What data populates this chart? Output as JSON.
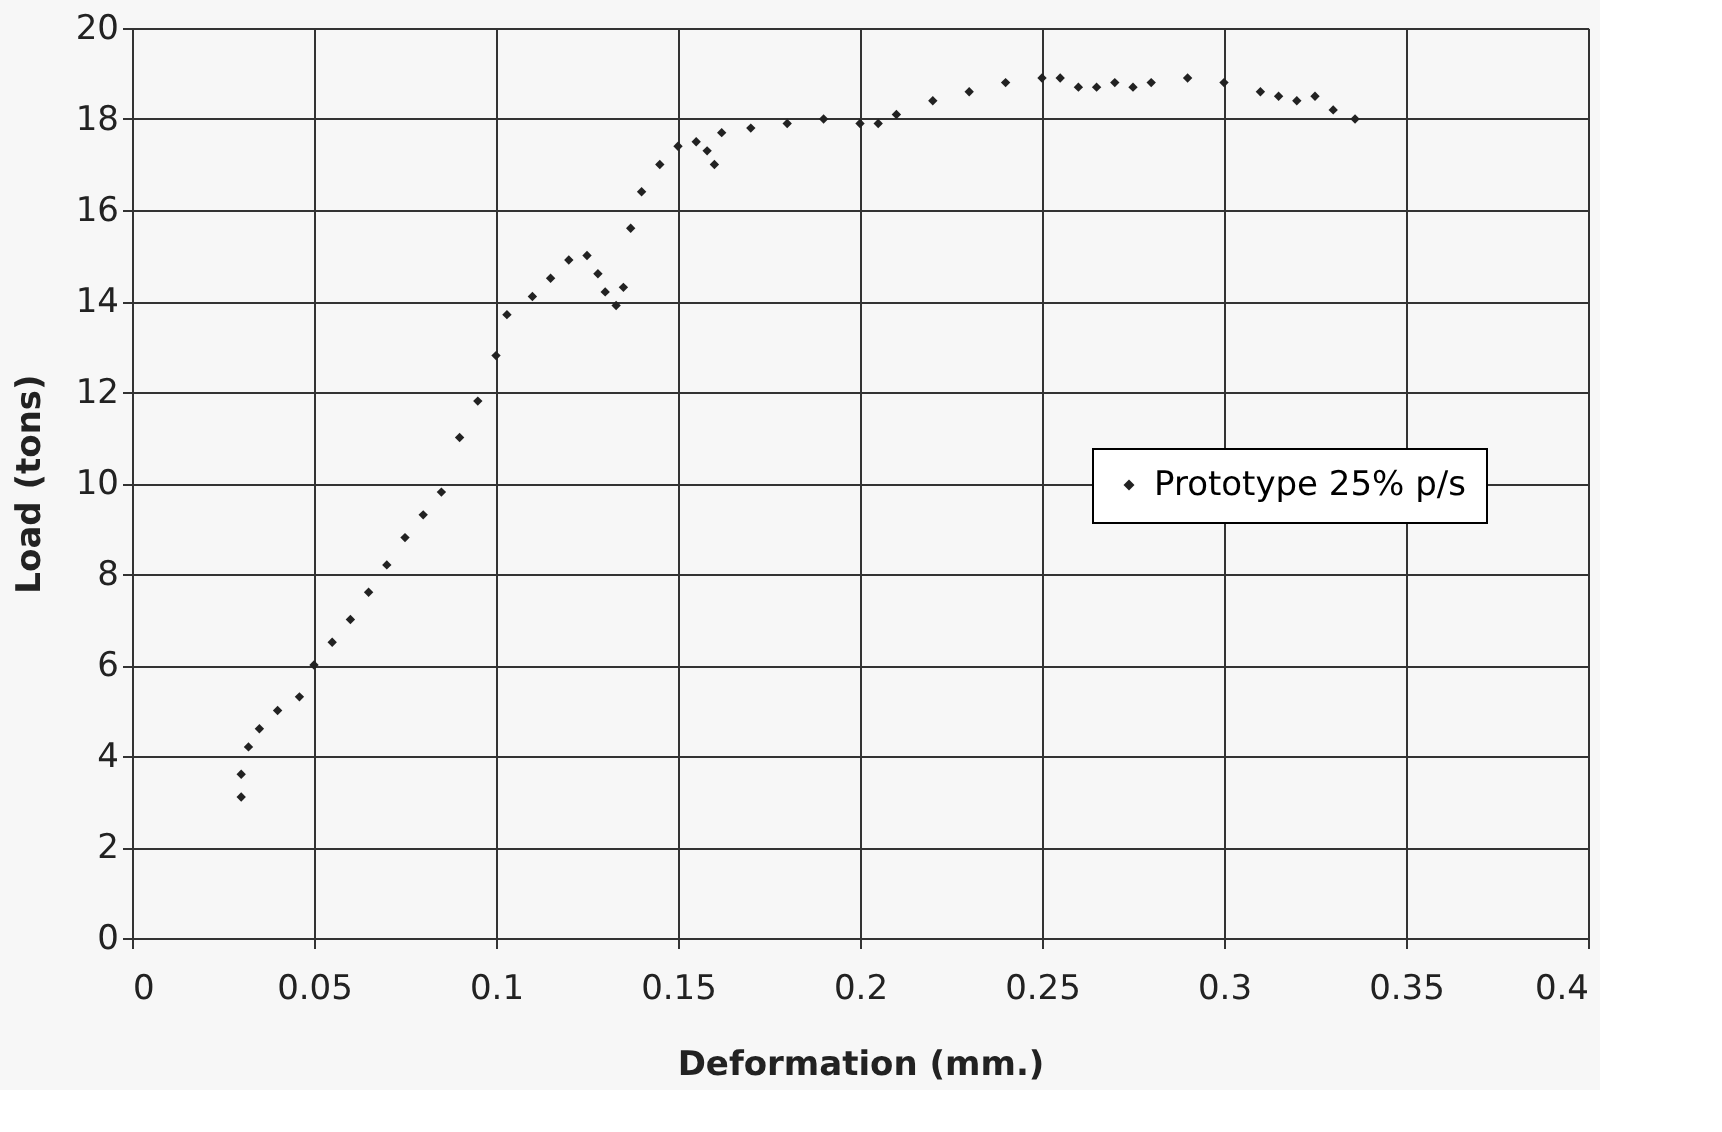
{
  "chart_data": {
    "type": "scatter",
    "xlabel": "Deformation (mm.)",
    "ylabel": "Load (tons)",
    "xlim": [
      0,
      0.4
    ],
    "xticks": [
      0,
      0.05,
      0.1,
      0.15,
      0.2,
      0.25,
      0.3,
      0.35,
      0.4
    ],
    "ylim": [
      0,
      20
    ],
    "yticks": [
      0,
      2,
      4,
      6,
      8,
      10,
      12,
      14,
      16,
      18,
      20
    ],
    "grid": true,
    "legend": "right",
    "marker": "diamond",
    "series": [
      {
        "name": "Prototype 25% p/s",
        "color": "#222222",
        "x": [
          0.03,
          0.03,
          0.032,
          0.035,
          0.04,
          0.046,
          0.05,
          0.055,
          0.06,
          0.065,
          0.07,
          0.075,
          0.08,
          0.085,
          0.09,
          0.095,
          0.1,
          0.103,
          0.11,
          0.115,
          0.12,
          0.125,
          0.128,
          0.13,
          0.133,
          0.135,
          0.137,
          0.14,
          0.145,
          0.15,
          0.155,
          0.158,
          0.16,
          0.162,
          0.17,
          0.18,
          0.19,
          0.2,
          0.205,
          0.21,
          0.22,
          0.23,
          0.24,
          0.25,
          0.255,
          0.26,
          0.265,
          0.27,
          0.275,
          0.28,
          0.29,
          0.3,
          0.31,
          0.315,
          0.32,
          0.325,
          0.33,
          0.336
        ],
        "values": [
          3.1,
          3.6,
          4.2,
          4.6,
          5.0,
          5.3,
          6.0,
          6.5,
          7.0,
          7.6,
          8.2,
          8.8,
          9.3,
          9.8,
          11.0,
          11.8,
          12.8,
          13.7,
          14.1,
          14.5,
          14.9,
          15.0,
          14.6,
          14.2,
          13.9,
          14.3,
          15.6,
          16.4,
          17.0,
          17.4,
          17.5,
          17.3,
          17.0,
          17.7,
          17.8,
          17.9,
          18.0,
          17.9,
          17.9,
          18.1,
          18.4,
          18.6,
          18.8,
          18.9,
          18.9,
          18.7,
          18.7,
          18.8,
          18.7,
          18.8,
          18.9,
          18.8,
          18.6,
          18.5,
          18.4,
          18.5,
          18.2,
          18.0
        ]
      }
    ]
  }
}
